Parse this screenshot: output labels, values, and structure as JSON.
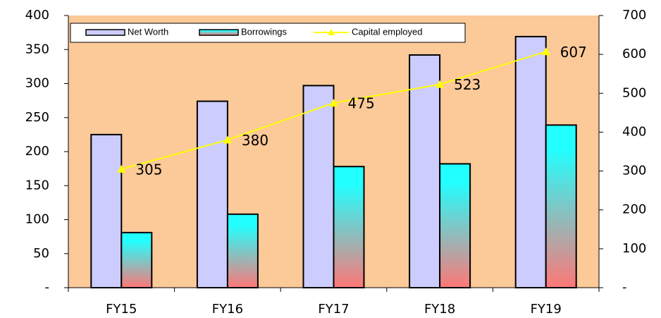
{
  "chart_data": {
    "type": "bar",
    "categories": [
      "FY15",
      "FY16",
      "FY17",
      "FY18",
      "FY19"
    ],
    "series": [
      {
        "name": "Net Worth",
        "color": "#ccccff",
        "values": [
          225,
          274,
          297,
          342,
          369
        ]
      },
      {
        "name": "Borrowings",
        "color": "#22ffff",
        "values": [
          81,
          108,
          178,
          182,
          239
        ]
      },
      {
        "name": "Capital employed",
        "color": "#ffff00",
        "type": "line",
        "axis": "y2",
        "values": [
          305,
          380,
          475,
          523,
          607
        ]
      }
    ],
    "ylim": [
      0,
      400
    ],
    "yticks": [
      {
        "value": 0,
        "label": "-"
      },
      50,
      100,
      150,
      200,
      250,
      300,
      350,
      400
    ],
    "y2lim": [
      0,
      700
    ],
    "y2ticks": [
      {
        "value": 0,
        "label": "-"
      },
      100,
      200,
      300,
      400,
      500,
      600,
      700
    ],
    "plot_background": "#fcc999",
    "legend": "top"
  }
}
